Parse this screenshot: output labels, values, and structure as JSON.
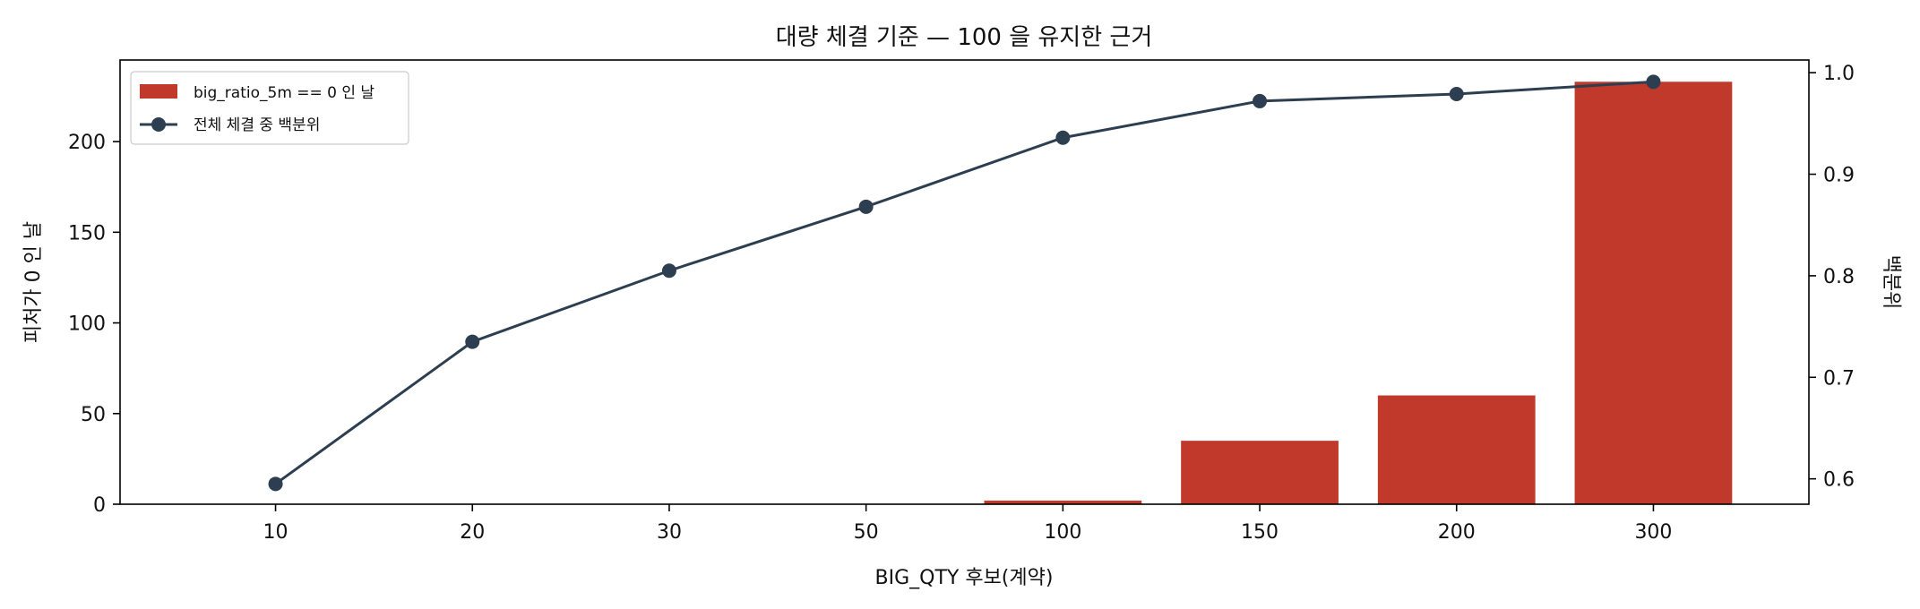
{
  "chart_data": {
    "type": "bar",
    "title": "대량 체결 기준 — 100 을 유지한 근거",
    "xlabel": "BIG_QTY 후보(계약)",
    "ylabel": "피처가 0 인 날",
    "y2label": "백분위",
    "categories": [
      "10",
      "20",
      "30",
      "50",
      "100",
      "150",
      "200",
      "300"
    ],
    "ylim": [
      0,
      245
    ],
    "y2lim": [
      0.575,
      1.0125
    ],
    "yticks": [
      0,
      50,
      100,
      150,
      200
    ],
    "y2ticks": [
      0.6,
      0.7,
      0.8,
      0.9,
      1.0
    ],
    "y2tick_labels": [
      "0.6",
      "0.7",
      "0.8",
      "0.9",
      "1.0"
    ],
    "grid": false,
    "legend_position": "top-left",
    "series": [
      {
        "name": "big_ratio_5m == 0 인 날",
        "type": "bar",
        "axis": "left",
        "color": "#c0392b",
        "values": [
          0,
          0,
          0,
          0,
          2,
          35,
          60,
          233
        ]
      },
      {
        "name": "전체 체결 중 백분위",
        "type": "line",
        "axis": "right",
        "color": "#2c3e50",
        "marker": "circle",
        "values": [
          0.595,
          0.735,
          0.805,
          0.868,
          0.936,
          0.972,
          0.979,
          0.991
        ]
      }
    ]
  }
}
